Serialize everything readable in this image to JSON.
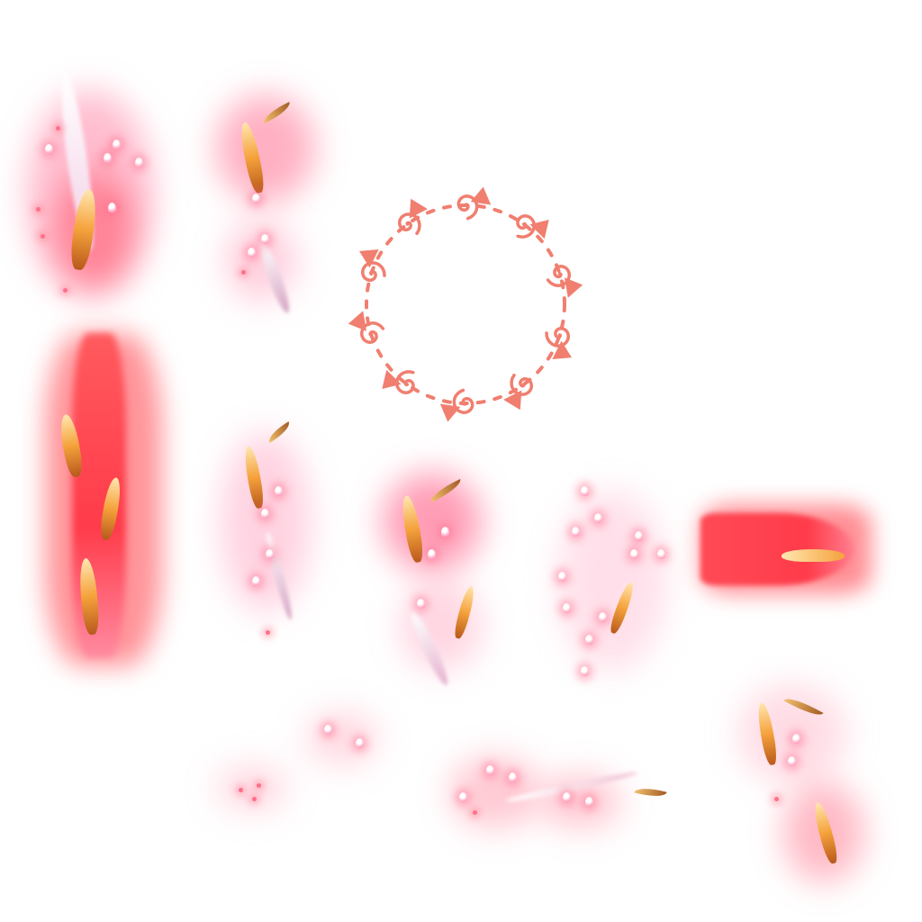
{
  "sheet": {
    "background": "#ffffff",
    "palette": {
      "glow_red": "#ff3b4a",
      "glow_pink": "#ff9fb8",
      "petal_pink": "#ffc2d6",
      "gold": "#f5a23c",
      "ring_salmon": "#f07f70"
    },
    "frames": [
      {
        "name": "slash-frame-1"
      },
      {
        "name": "slash-frame-2"
      },
      {
        "name": "swirl-ring"
      },
      {
        "name": "flame-column"
      },
      {
        "name": "slash-frame-3"
      },
      {
        "name": "slash-frame-4"
      },
      {
        "name": "petal-burst"
      },
      {
        "name": "horizontal-flame"
      },
      {
        "name": "petal-specks"
      },
      {
        "name": "petal-drift"
      },
      {
        "name": "slash-frame-5"
      }
    ]
  }
}
